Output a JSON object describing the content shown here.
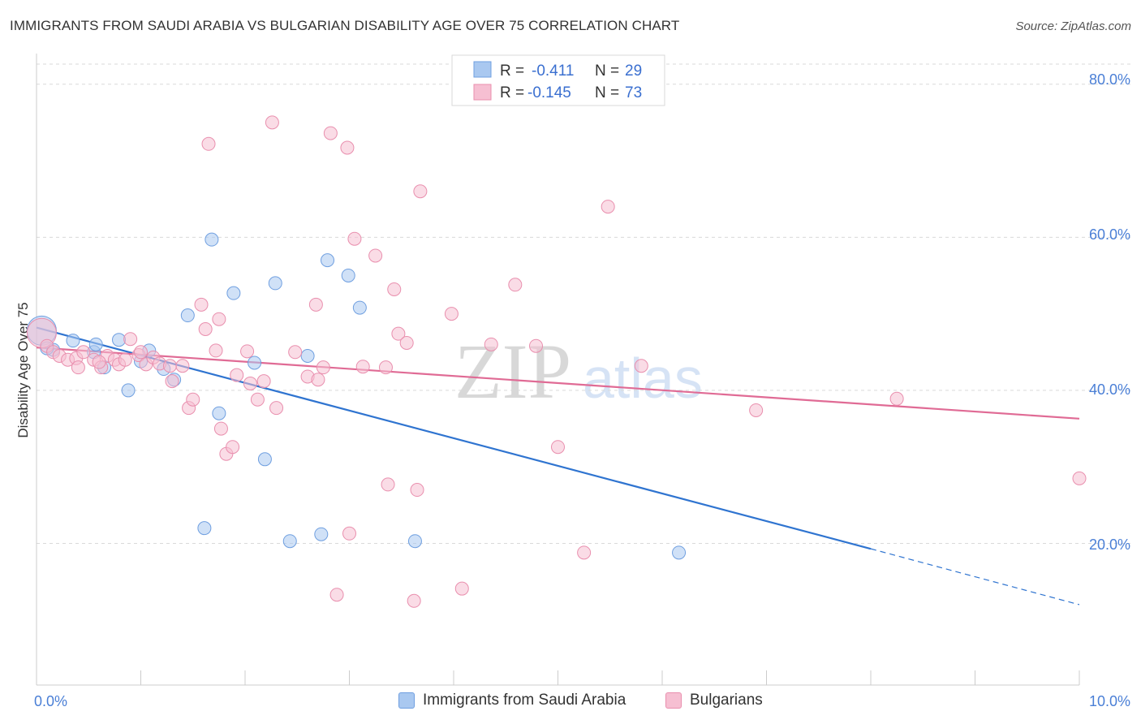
{
  "title": "IMMIGRANTS FROM SAUDI ARABIA VS BULGARIAN DISABILITY AGE OVER 75 CORRELATION CHART",
  "source": "Source: ZipAtlas.com",
  "watermark": {
    "zip": "ZIP",
    "atlas": "atlas"
  },
  "legend_top": [
    {
      "r_label": "R =",
      "r_value": "-0.411",
      "n_label": "N =",
      "n_value": "29"
    },
    {
      "r_label": "R =",
      "r_value": "-0.145",
      "n_label": "N =",
      "n_value": "73"
    }
  ],
  "legend_bottom": [
    "Immigrants from Saudi Arabia",
    "Bulgarians"
  ],
  "colors": {
    "blue_fill": "#a9c8f0",
    "blue_stroke": "#6f9fe0",
    "blue_line": "#2f74d0",
    "pink_fill": "#f6bfd2",
    "pink_stroke": "#e98fae",
    "pink_line": "#e06b95",
    "grid": "#d9d9d9",
    "axis": "#cccccc"
  },
  "chart_data": {
    "type": "scatter",
    "title": "IMMIGRANTS FROM SAUDI ARABIA VS BULGARIAN DISABILITY AGE OVER 75 CORRELATION CHART",
    "xlabel": "",
    "ylabel": "Disability Age Over 75",
    "xlim": [
      0,
      10
    ],
    "ylim": [
      1.5,
      84
    ],
    "x_tick_labels": [
      "0.0%",
      "10.0%"
    ],
    "y_ticks": [
      20,
      40,
      60,
      80
    ],
    "y_tick_labels": [
      "20.0%",
      "40.0%",
      "60.0%",
      "80.0%"
    ],
    "series": [
      {
        "name": "Immigrants from Saudi Arabia",
        "color": "blue",
        "points": [
          [
            0.05,
            47.8
          ],
          [
            0.16,
            45.3
          ],
          [
            0.35,
            46.5
          ],
          [
            0.55,
            45.0
          ],
          [
            0.57,
            46.0
          ],
          [
            0.65,
            43.0
          ],
          [
            0.79,
            46.6
          ],
          [
            0.88,
            40.0
          ],
          [
            1.0,
            43.8
          ],
          [
            1.08,
            45.2
          ],
          [
            1.22,
            42.8
          ],
          [
            1.32,
            41.4
          ],
          [
            1.45,
            49.8
          ],
          [
            1.61,
            22.0
          ],
          [
            1.68,
            59.7
          ],
          [
            1.75,
            37.0
          ],
          [
            1.89,
            52.7
          ],
          [
            2.09,
            43.6
          ],
          [
            2.19,
            31.0
          ],
          [
            2.29,
            54.0
          ],
          [
            2.43,
            20.3
          ],
          [
            2.6,
            44.5
          ],
          [
            2.73,
            21.2
          ],
          [
            2.79,
            57.0
          ],
          [
            2.99,
            55.0
          ],
          [
            3.1,
            50.8
          ],
          [
            3.63,
            20.3
          ],
          [
            6.16,
            18.8
          ],
          [
            0.1,
            45.5
          ]
        ],
        "trend": {
          "x": [
            0.0,
            8.0
          ],
          "y": [
            48.2,
            19.3
          ]
        },
        "trend_dashed": {
          "x": [
            8.0,
            10.0
          ],
          "y": [
            19.3,
            12.0
          ]
        }
      },
      {
        "name": "Bulgarians",
        "color": "pink",
        "points": [
          [
            0.05,
            47.5
          ],
          [
            0.1,
            45.8
          ],
          [
            0.16,
            45.0
          ],
          [
            0.22,
            44.5
          ],
          [
            0.3,
            44.0
          ],
          [
            0.38,
            44.2
          ],
          [
            0.45,
            45.0
          ],
          [
            0.55,
            44.0
          ],
          [
            0.62,
            43.0
          ],
          [
            0.68,
            44.5
          ],
          [
            0.75,
            44.0
          ],
          [
            0.79,
            43.4
          ],
          [
            0.85,
            44.0
          ],
          [
            0.9,
            46.7
          ],
          [
            0.98,
            44.6
          ],
          [
            1.05,
            43.4
          ],
          [
            1.12,
            44.3
          ],
          [
            1.18,
            43.5
          ],
          [
            1.28,
            43.2
          ],
          [
            1.3,
            41.2
          ],
          [
            1.4,
            43.2
          ],
          [
            1.46,
            37.7
          ],
          [
            1.5,
            38.8
          ],
          [
            1.58,
            51.2
          ],
          [
            1.62,
            48.0
          ],
          [
            1.65,
            72.2
          ],
          [
            1.72,
            45.2
          ],
          [
            1.77,
            35.0
          ],
          [
            1.82,
            31.7
          ],
          [
            1.88,
            32.6
          ],
          [
            1.92,
            42.0
          ],
          [
            2.02,
            45.1
          ],
          [
            2.05,
            40.9
          ],
          [
            2.12,
            38.8
          ],
          [
            2.18,
            41.2
          ],
          [
            2.26,
            75.0
          ],
          [
            2.3,
            37.7
          ],
          [
            2.48,
            45.0
          ],
          [
            2.6,
            41.8
          ],
          [
            2.68,
            51.2
          ],
          [
            2.7,
            41.4
          ],
          [
            2.82,
            73.6
          ],
          [
            2.88,
            13.3
          ],
          [
            2.98,
            71.7
          ],
          [
            3.0,
            21.3
          ],
          [
            3.05,
            59.8
          ],
          [
            3.13,
            43.1
          ],
          [
            3.25,
            57.6
          ],
          [
            3.35,
            43.0
          ],
          [
            3.37,
            27.7
          ],
          [
            3.43,
            53.2
          ],
          [
            3.47,
            47.4
          ],
          [
            3.55,
            46.2
          ],
          [
            3.62,
            12.5
          ],
          [
            3.65,
            27.0
          ],
          [
            3.68,
            66.0
          ],
          [
            3.98,
            50.0
          ],
          [
            4.08,
            14.1
          ],
          [
            4.36,
            46.0
          ],
          [
            4.59,
            53.8
          ],
          [
            4.79,
            45.8
          ],
          [
            5.0,
            32.6
          ],
          [
            5.25,
            18.8
          ],
          [
            5.48,
            64.0
          ],
          [
            5.8,
            43.2
          ],
          [
            6.9,
            37.4
          ],
          [
            8.25,
            38.9
          ],
          [
            10.0,
            28.5
          ],
          [
            1.75,
            49.3
          ],
          [
            0.6,
            43.7
          ],
          [
            1.0,
            45.0
          ],
          [
            2.75,
            43.0
          ],
          [
            0.4,
            43.0
          ]
        ],
        "trend": {
          "x": [
            0.0,
            10.0
          ],
          "y": [
            45.6,
            36.3
          ]
        }
      }
    ]
  }
}
